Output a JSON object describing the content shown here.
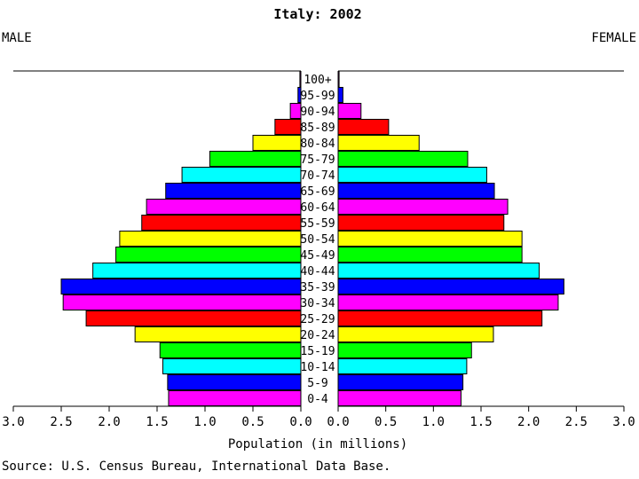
{
  "chart_data": {
    "type": "bar",
    "title": "Italy: 2002",
    "left_label": "MALE",
    "right_label": "FEMALE",
    "xlabel": "Population (in millions)",
    "source": "Source: U.S. Census Bureau, International Data Base.",
    "xlim": [
      0,
      3.0
    ],
    "x_ticks": [
      "3.0",
      "2.5",
      "2.0",
      "1.5",
      "1.0",
      "0.5",
      "0.0"
    ],
    "categories": [
      "0-4",
      "5-9",
      "10-14",
      "15-19",
      "20-24",
      "25-29",
      "30-34",
      "35-39",
      "40-44",
      "45-49",
      "50-54",
      "55-59",
      "60-64",
      "65-69",
      "70-74",
      "75-79",
      "80-84",
      "85-89",
      "90-94",
      "95-99",
      "100+"
    ],
    "series": [
      {
        "name": "MALE",
        "values": [
          1.38,
          1.39,
          1.44,
          1.47,
          1.73,
          2.24,
          2.48,
          2.5,
          2.17,
          1.93,
          1.89,
          1.66,
          1.61,
          1.41,
          1.24,
          0.95,
          0.5,
          0.27,
          0.11,
          0.03,
          0.01
        ]
      },
      {
        "name": "FEMALE",
        "values": [
          1.29,
          1.31,
          1.35,
          1.4,
          1.63,
          2.14,
          2.31,
          2.37,
          2.11,
          1.93,
          1.93,
          1.74,
          1.78,
          1.64,
          1.56,
          1.36,
          0.85,
          0.53,
          0.24,
          0.05,
          0.01
        ]
      }
    ],
    "bar_colors": [
      "#ff00ff",
      "#0000ff",
      "#00ffff",
      "#00ff00",
      "#ffff00",
      "#ff0000",
      "#ff00ff",
      "#0000ff",
      "#00ffff",
      "#00ff00",
      "#ffff00",
      "#ff0000",
      "#ff00ff",
      "#0000ff",
      "#00ffff",
      "#00ff00",
      "#ffff00",
      "#ff0000",
      "#ff00ff",
      "#0000ff",
      "#ff00ff"
    ],
    "grid": false
  }
}
